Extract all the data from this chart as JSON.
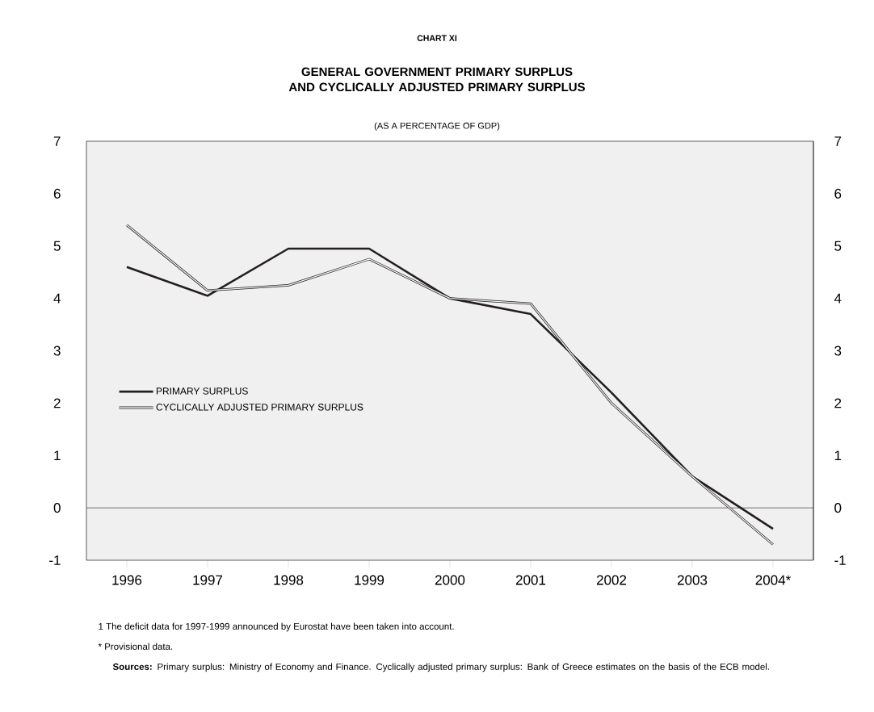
{
  "chart_data": {
    "type": "line",
    "title": "GENERAL GOVERNMENT PRIMARY SURPLUS AND CYCLICALLY ADJUSTED PRIMARY SURPLUS",
    "subtitle": "(AS A PERCENTAGE OF GDP)",
    "categories": [
      "1996",
      "1997",
      "1998",
      "1999",
      "2000",
      "2001",
      "2002",
      "2003",
      "2004*"
    ],
    "series": [
      {
        "name": "PRIMARY SURPLUS",
        "color": "#231f20",
        "values": [
          4.6,
          4.05,
          4.95,
          4.95,
          4.0,
          3.7,
          2.2,
          0.6,
          -0.4
        ]
      },
      {
        "name": "CYCLICALLY ADJUSTED PRIMARY SURPLUS",
        "color": "#231f20",
        "values": [
          5.4,
          4.15,
          4.25,
          4.75,
          4.0,
          3.9,
          2.0,
          0.6,
          -0.7
        ]
      }
    ],
    "ylim": [
      -1,
      7
    ],
    "yticks": [
      -1,
      0,
      1,
      2,
      3,
      4,
      5,
      6,
      7
    ],
    "y2lim": [
      -1,
      7
    ],
    "y2ticks": [
      -1,
      0,
      1,
      2,
      3,
      4,
      5,
      6,
      7
    ],
    "ref_lines": [
      {
        "axis": "y",
        "value": 0,
        "color": "#231f20"
      }
    ],
    "legend": "left",
    "annotations": [
      "CHART XI",
      "1 The deficit data for 1997-1999 announced by Eurostat have been taken into account.",
      "* Provisional data.",
      "**Sources:** Primary surplus: Ministry of Economy and Finance. Cyclically adjusted primary surplus: Bank of Greece estimates on the basis of the ECB model."
    ]
  }
}
